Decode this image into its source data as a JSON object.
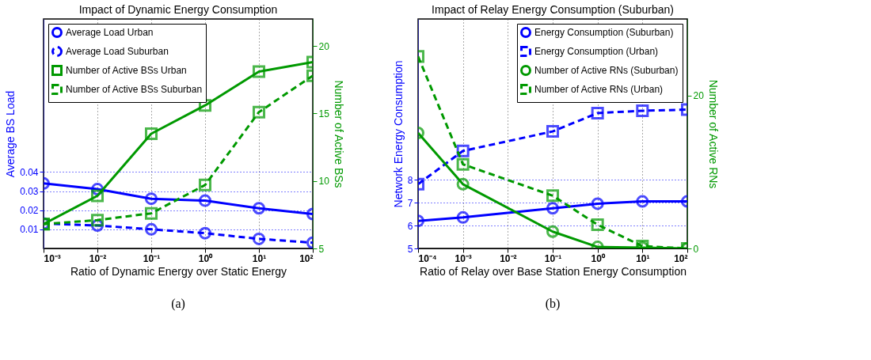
{
  "chart_data": [
    {
      "type": "line",
      "title": "Impact of Dynamic Energy Consumption",
      "xlabel": "Ratio of Dynamic Energy over Static Energy",
      "ylabel": "Average BS Load",
      "y2label": "Number of Active BSs",
      "log": "x",
      "grid": true,
      "legend": "top left",
      "x": [
        0.001,
        0.01,
        0.1,
        1,
        10,
        100
      ],
      "xlim": [
        0.001,
        100
      ],
      "xticks": [
        {
          "value": 0.001,
          "label": "10⁻³"
        },
        {
          "value": 0.01,
          "label": "10⁻²"
        },
        {
          "value": 0.1,
          "label": "10⁻¹"
        },
        {
          "value": 1,
          "label": "10⁰"
        },
        {
          "value": 10,
          "label": "10¹"
        },
        {
          "value": 100,
          "label": "10²"
        }
      ],
      "ylim": [
        0,
        0.12
      ],
      "yticks": [
        0.01,
        0.02,
        0.03,
        0.04
      ],
      "y2lim": [
        5,
        22
      ],
      "y2ticks": [
        5,
        10,
        15,
        20
      ],
      "series": [
        {
          "name": "Average Load Urban",
          "color": "#0000ff",
          "marker": "circle",
          "line_style": "solid",
          "values": [
            0.034,
            0.031,
            0.026,
            0.025,
            0.021,
            0.018
          ]
        },
        {
          "name": "Average Load Suburban",
          "color": "#0000ff",
          "marker": "circle",
          "line_style": "dashed",
          "values": [
            0.013,
            0.012,
            0.01,
            0.008,
            0.005,
            0.003
          ]
        },
        {
          "name": "Number of Active BSs Urban",
          "color": "#009900",
          "marker": "square",
          "line_style": "solid",
          "axis": "y2",
          "values": [
            6.8,
            8.9,
            13.5,
            15.6,
            18.1,
            18.8
          ]
        },
        {
          "name": "Number of Active BSs Suburban",
          "color": "#009900",
          "marker": "square",
          "line_style": "dashed",
          "axis": "y2",
          "values": [
            6.8,
            7.1,
            7.6,
            9.7,
            15.1,
            17.8
          ]
        }
      ],
      "annotations": [
        "(a)"
      ]
    },
    {
      "type": "line",
      "title": "Impact of Relay Energy Consumption (Suburban)",
      "xlabel": "Ratio of Relay over Base Station Energy Consumption",
      "ylabel": "Network Energy Consumption",
      "y2label": "Number of Active RNs",
      "log": "x",
      "grid": true,
      "legend": "top right",
      "x": [
        0.0001,
        0.001,
        0.1,
        1,
        10,
        100
      ],
      "xlim": [
        0.0001,
        100
      ],
      "xticks": [
        {
          "value": 0.0001,
          "label": "10⁻⁴"
        },
        {
          "value": 0.001,
          "label": "10⁻³"
        },
        {
          "value": 0.01,
          "label": "10⁻²"
        },
        {
          "value": 0.1,
          "label": "10⁻¹"
        },
        {
          "value": 1,
          "label": "10⁰"
        },
        {
          "value": 10,
          "label": "10¹"
        },
        {
          "value": 100,
          "label": "10²"
        }
      ],
      "ylim": [
        5,
        15
      ],
      "yticks": [
        5,
        6,
        7,
        8
      ],
      "y2lim": [
        0,
        30
      ],
      "y2ticks": [
        0,
        20
      ],
      "series": [
        {
          "name": "Energy Consumption (Suburban)",
          "color": "#0000ff",
          "marker": "circle",
          "line_style": "solid",
          "values": [
            6.2,
            6.35,
            6.75,
            6.95,
            7.05,
            7.05
          ]
        },
        {
          "name": "Energy Consumption (Urban)",
          "color": "#0000ff",
          "marker": "square",
          "line_style": "dashed",
          "values": [
            7.8,
            9.25,
            10.1,
            10.9,
            11.0,
            11.05
          ]
        },
        {
          "name": "Number of Active RNs (Suburban)",
          "color": "#009900",
          "marker": "circle",
          "line_style": "solid",
          "axis": "y2",
          "values": [
            15.1,
            8.4,
            2.2,
            0.2,
            0.1,
            0
          ]
        },
        {
          "name": "Number of Active RNs (Urban)",
          "color": "#009900",
          "marker": "square",
          "line_style": "dashed",
          "axis": "y2",
          "values": [
            25.1,
            11.0,
            6.9,
            3.1,
            0.3,
            0
          ]
        }
      ],
      "annotations": [
        "(b)"
      ]
    }
  ]
}
